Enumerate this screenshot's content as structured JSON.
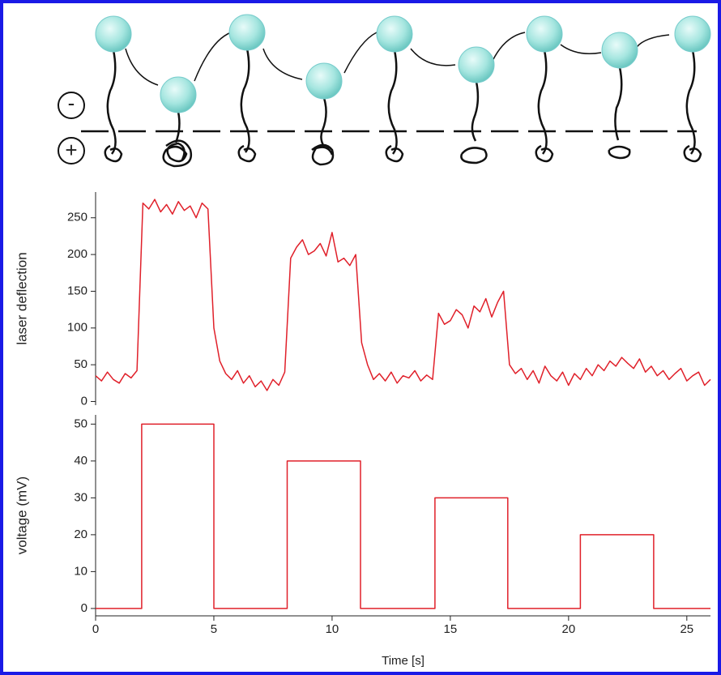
{
  "diagram": {
    "minus_label": "-",
    "plus_label": "+"
  },
  "chart_data": [
    {
      "type": "line",
      "y_label": "laser deflection",
      "color": "#e0202a",
      "xlim": [
        0,
        26
      ],
      "ylim": [
        -5,
        285
      ],
      "yticks": [
        0,
        50,
        100,
        150,
        200,
        250
      ],
      "x": [
        0,
        0.25,
        0.5,
        0.75,
        1,
        1.25,
        1.5,
        1.75,
        2,
        2.25,
        2.5,
        2.75,
        3,
        3.25,
        3.5,
        3.75,
        4,
        4.25,
        4.5,
        4.75,
        5,
        5.25,
        5.5,
        5.75,
        6,
        6.25,
        6.5,
        6.75,
        7,
        7.25,
        7.5,
        7.75,
        8,
        8.25,
        8.5,
        8.75,
        9,
        9.25,
        9.5,
        9.75,
        10,
        10.25,
        10.5,
        10.75,
        11,
        11.25,
        11.5,
        11.75,
        12,
        12.25,
        12.5,
        12.75,
        13,
        13.25,
        13.5,
        13.75,
        14,
        14.25,
        14.5,
        14.75,
        15,
        15.25,
        15.5,
        15.75,
        16,
        16.25,
        16.5,
        16.75,
        17,
        17.25,
        17.5,
        17.75,
        18,
        18.25,
        18.5,
        18.75,
        19,
        19.25,
        19.5,
        19.75,
        20,
        20.25,
        20.5,
        20.75,
        21,
        21.25,
        21.5,
        21.75,
        22,
        22.25,
        22.5,
        22.75,
        23,
        23.25,
        23.5,
        23.75,
        24,
        24.25,
        24.5,
        24.75,
        25,
        25.25,
        25.5,
        25.75,
        26
      ],
      "values": [
        35,
        28,
        40,
        30,
        25,
        38,
        32,
        42,
        270,
        262,
        275,
        258,
        268,
        255,
        272,
        260,
        266,
        250,
        270,
        262,
        100,
        55,
        38,
        30,
        42,
        25,
        35,
        20,
        28,
        15,
        30,
        22,
        40,
        195,
        210,
        220,
        200,
        205,
        215,
        198,
        230,
        190,
        195,
        185,
        200,
        80,
        50,
        30,
        38,
        28,
        40,
        25,
        35,
        32,
        42,
        28,
        36,
        30,
        120,
        105,
        110,
        125,
        118,
        100,
        130,
        122,
        140,
        115,
        135,
        150,
        50,
        38,
        45,
        30,
        42,
        25,
        48,
        35,
        28,
        40,
        22,
        38,
        30,
        45,
        35,
        50,
        42,
        55,
        48,
        60,
        52,
        45,
        58,
        40,
        48,
        35,
        42,
        30,
        38,
        45,
        28,
        35,
        40,
        22,
        30
      ]
    },
    {
      "type": "line",
      "y_label": "voltage (mV)",
      "x_label": "Time  [s]",
      "color": "#e0202a",
      "xlim": [
        0,
        26
      ],
      "ylim": [
        -2,
        52.5
      ],
      "yticks": [
        0,
        10,
        20,
        30,
        40,
        50
      ],
      "xticks": [
        0,
        5,
        10,
        15,
        20,
        25
      ],
      "x": [
        0,
        1.95,
        1.95,
        5.0,
        5.0,
        8.1,
        8.1,
        11.2,
        11.2,
        14.35,
        14.35,
        17.43,
        17.43,
        20.5,
        20.5,
        23.6,
        23.6,
        26
      ],
      "values": [
        0,
        0,
        50,
        50,
        0,
        0,
        40,
        40,
        0,
        0,
        30,
        30,
        0,
        0,
        20,
        20,
        0,
        0
      ]
    }
  ]
}
